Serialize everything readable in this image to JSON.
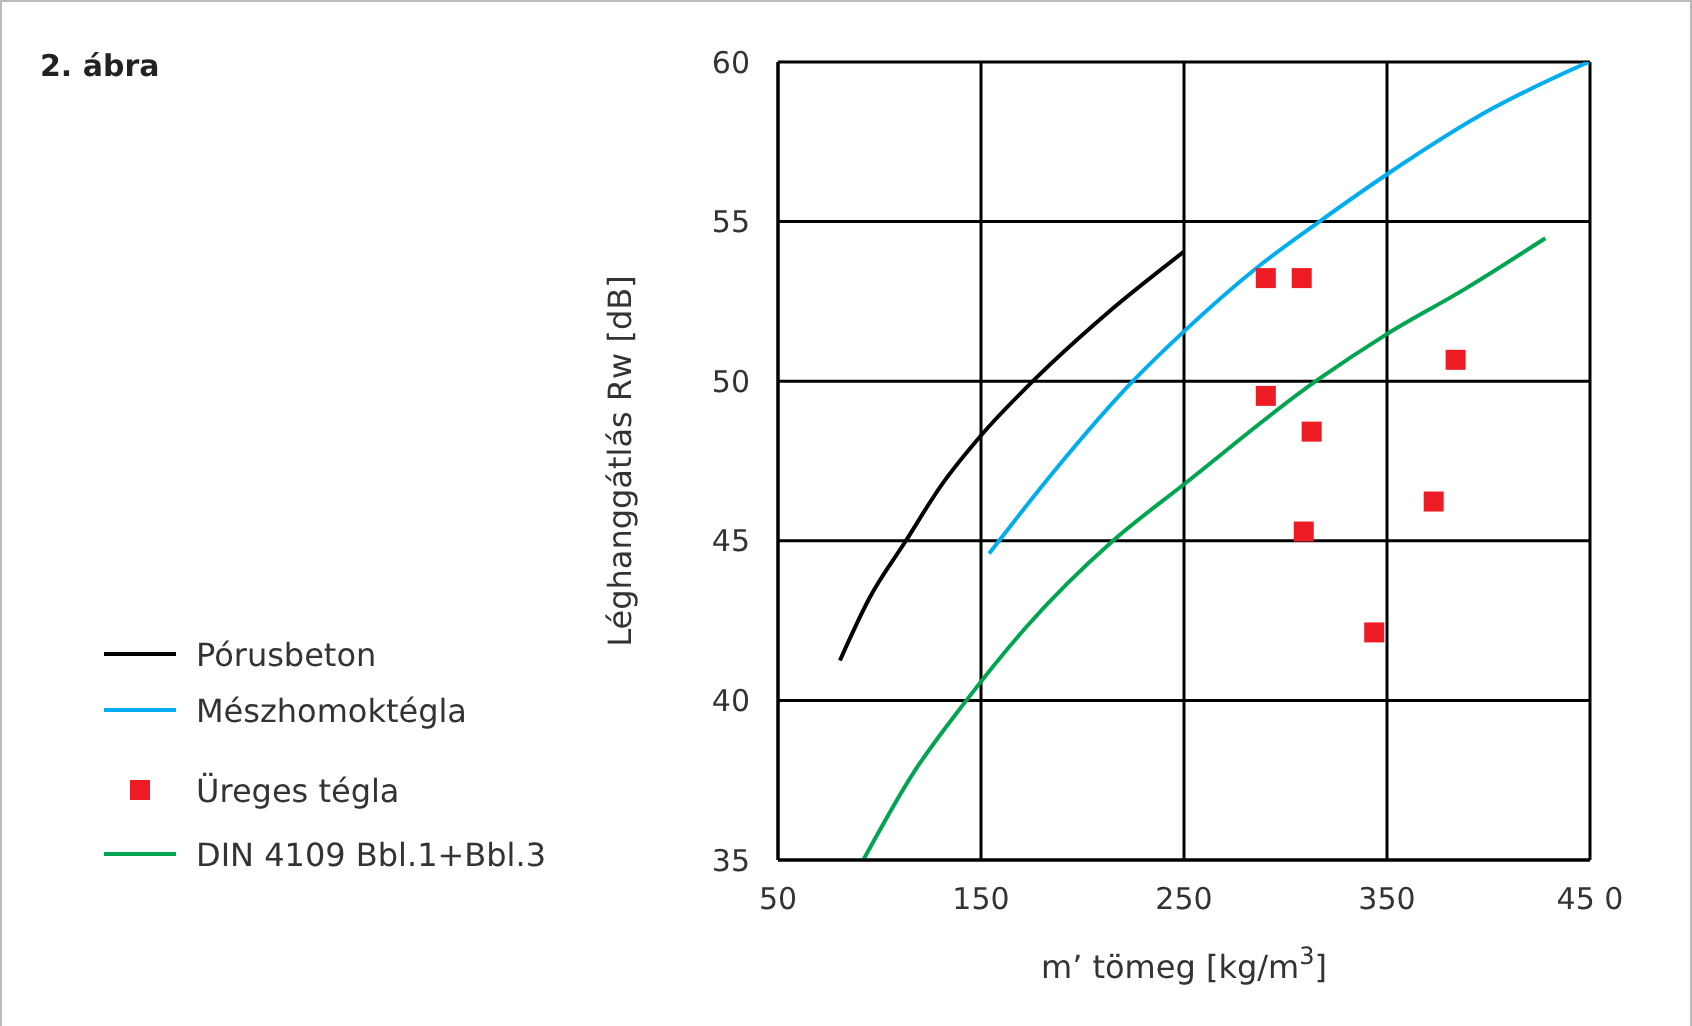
{
  "chart_data": {
    "type": "line",
    "title": "2. ábra",
    "xlabel": "m’ tömeg [kg/m$^{3}$]",
    "ylabel": "Léghanggátlás Rw [dB]",
    "xlim": [
      50,
      450
    ],
    "xticks": [
      50,
      150,
      250,
      350,
      {
        "value": 450,
        "label": "45 0"
      }
    ],
    "ylim": [
      35,
      60
    ],
    "yticks": [
      35,
      40,
      45,
      50,
      55,
      60
    ],
    "grid": true,
    "legend": "left",
    "series": [
      {
        "name": "Pórusbeton",
        "color": "#000000",
        "marker": "none",
        "x": [
          80.5,
          95,
          113,
          130,
          150,
          175.5,
          211.6,
          250
        ],
        "values": [
          41.25,
          43.2,
          45,
          46.7,
          48.3,
          50,
          52.1,
          54.06
        ]
      },
      {
        "name": "Mészhomoktégla",
        "color": "#00aeef",
        "marker": "none",
        "x": [
          154,
          185,
          224.8,
          250,
          285.6,
          316.7,
          349.5,
          401.8,
          449.3
        ],
        "values": [
          44.6,
          47.1,
          50,
          51.56,
          53.54,
          55,
          56.46,
          58.54,
          60
        ]
      },
      {
        "name": "Üreges tégla",
        "type": "scatter",
        "color": "#ed1c24",
        "marker": "square",
        "x": [
          290.3,
          308,
          383.8,
          290.3,
          312.9,
          373,
          309,
          343.7
        ],
        "values": [
          53.23,
          53.23,
          50.67,
          49.54,
          48.42,
          46.23,
          45.29,
          42.13
        ]
      },
      {
        "name": "DIN 4109 Bbl.1+Bbl.3",
        "color": "#00a550",
        "marker": "none",
        "x": [
          92,
          116.4,
          142.8,
          172.3,
          215,
          250,
          314.9,
          349.5,
          388.7,
          428
        ],
        "values": [
          35,
          37.7,
          40,
          42.3,
          45,
          46.77,
          50,
          51.46,
          52.9,
          54.48
        ]
      }
    ]
  }
}
